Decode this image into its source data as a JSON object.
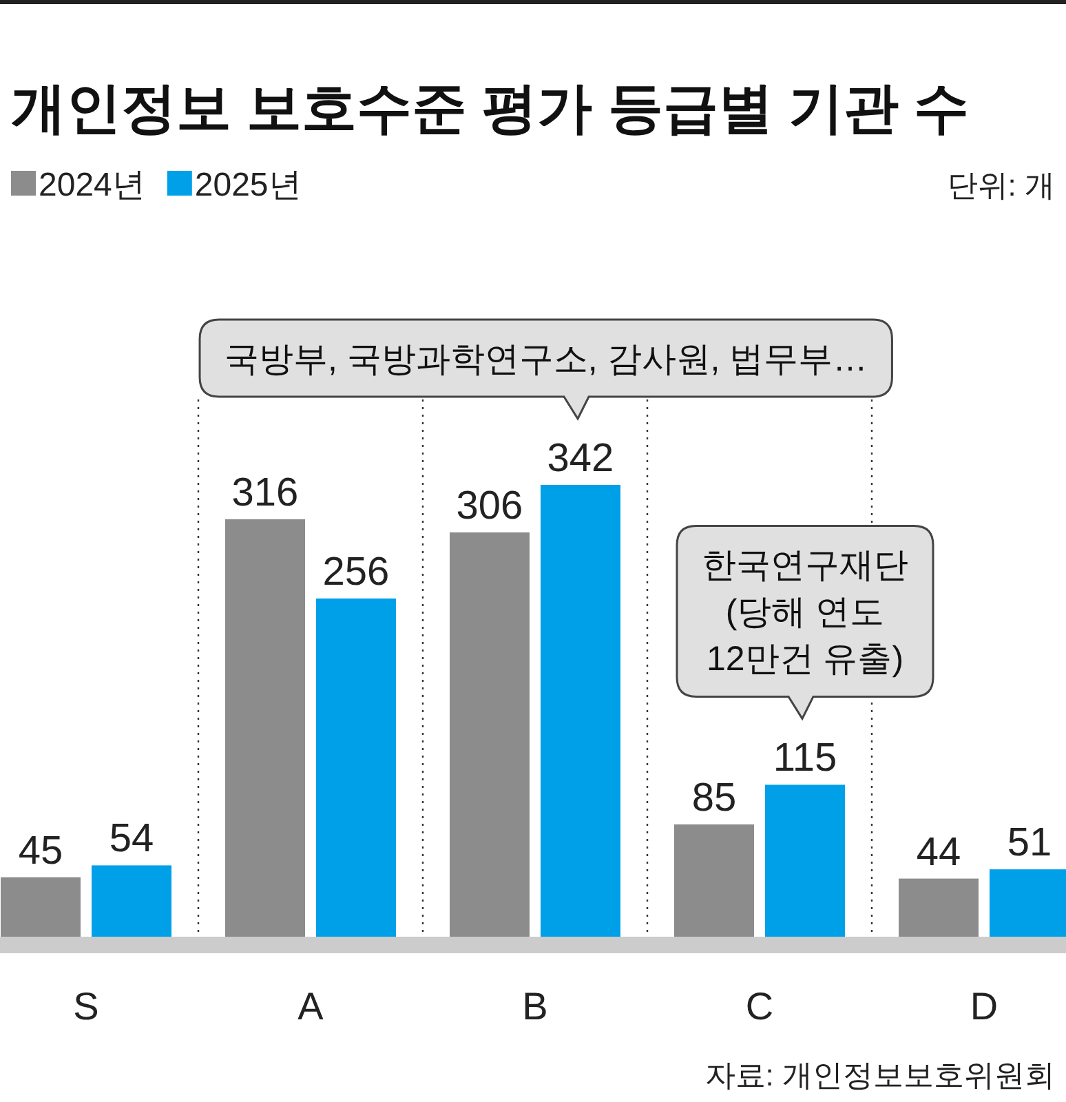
{
  "chart_data": {
    "type": "bar",
    "title": "개인정보 보호수준 평가 등급별 기관 수",
    "categories": [
      "S",
      "A",
      "B",
      "C",
      "D"
    ],
    "series": [
      {
        "name": "2024년",
        "color": "#8c8c8c",
        "values": [
          45,
          316,
          306,
          85,
          44
        ]
      },
      {
        "name": "2025년",
        "color": "#00a0e9",
        "values": [
          54,
          256,
          342,
          115,
          51
        ]
      }
    ],
    "data_labels": true,
    "legend": "top left",
    "annotations": [
      "단위: 개",
      "국방부, 국방과학연구소, 감사원, 법무부…",
      "한국연구재단\n(당해 연도\n12만건 유출)",
      "자료: 개인정보보호위원회"
    ]
  }
}
